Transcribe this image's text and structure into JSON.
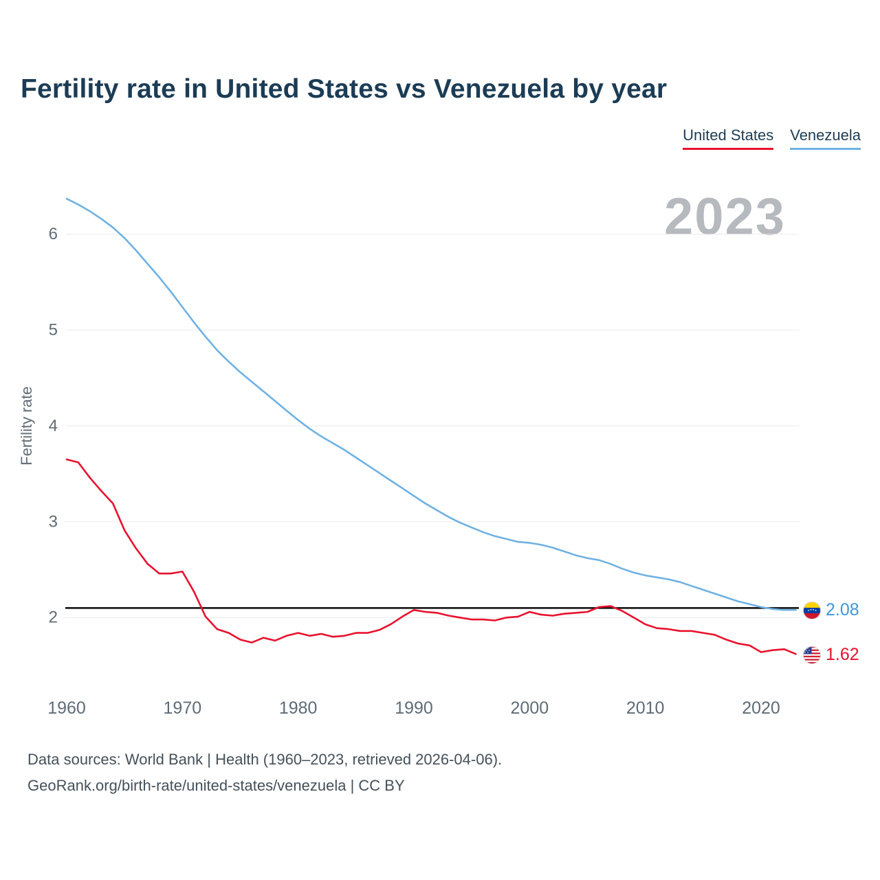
{
  "title": "Fertility rate in United States vs Venezuela by year",
  "legend": [
    {
      "label": "United States",
      "color": "#e8112d"
    },
    {
      "label": "Venezuela",
      "color": "#6fb1e3"
    }
  ],
  "watermark": "2023",
  "end_labels": [
    {
      "series": "Venezuela",
      "value": "2.08",
      "color": "#3d97da",
      "flag": "venezuela-flag-icon"
    },
    {
      "series": "United States",
      "value": "1.62",
      "color": "#e8112d",
      "flag": "us-flag-icon"
    }
  ],
  "footer": {
    "line1": "Data sources: World Bank | Health (1960–2023, retrieved 2026-04-06).",
    "line2": "GeoRank.org/birth-rate/united-states/venezuela | CC BY"
  },
  "chart_data": {
    "type": "line",
    "title": "Fertility rate in United States vs Venezuela by year",
    "xlabel": "",
    "ylabel": "Fertility rate",
    "xlim": [
      1960,
      2023
    ],
    "ylim": [
      1.45,
      6.55
    ],
    "x_ticks": [
      1960,
      1970,
      1980,
      1990,
      2000,
      2010,
      2020
    ],
    "y_ticks": [
      2,
      3,
      4,
      5,
      6
    ],
    "grid": "horizontal",
    "legend_position": "top-right",
    "reference_line": {
      "value": 2.1,
      "color": "#0a0a0a",
      "meaning": "replacement-level fertility"
    },
    "x": [
      1960,
      1961,
      1962,
      1963,
      1964,
      1965,
      1966,
      1967,
      1968,
      1969,
      1970,
      1971,
      1972,
      1973,
      1974,
      1975,
      1976,
      1977,
      1978,
      1979,
      1980,
      1981,
      1982,
      1983,
      1984,
      1985,
      1986,
      1987,
      1988,
      1989,
      1990,
      1991,
      1992,
      1993,
      1994,
      1995,
      1996,
      1997,
      1998,
      1999,
      2000,
      2001,
      2002,
      2003,
      2004,
      2005,
      2006,
      2007,
      2008,
      2009,
      2010,
      2011,
      2012,
      2013,
      2014,
      2015,
      2016,
      2017,
      2018,
      2019,
      2020,
      2021,
      2022,
      2023
    ],
    "series": [
      {
        "name": "Venezuela",
        "color": "#6fb1e3",
        "end_value": 2.08,
        "values": [
          6.37,
          6.31,
          6.24,
          6.16,
          6.07,
          5.96,
          5.83,
          5.69,
          5.55,
          5.4,
          5.24,
          5.08,
          4.93,
          4.79,
          4.67,
          4.56,
          4.46,
          4.36,
          4.26,
          4.16,
          4.06,
          3.97,
          3.89,
          3.82,
          3.75,
          3.67,
          3.59,
          3.51,
          3.43,
          3.35,
          3.27,
          3.19,
          3.12,
          3.05,
          2.99,
          2.94,
          2.89,
          2.85,
          2.82,
          2.79,
          2.78,
          2.76,
          2.73,
          2.69,
          2.65,
          2.62,
          2.6,
          2.56,
          2.51,
          2.47,
          2.44,
          2.42,
          2.4,
          2.37,
          2.33,
          2.29,
          2.25,
          2.21,
          2.17,
          2.14,
          2.11,
          2.09,
          2.08,
          2.08
        ]
      },
      {
        "name": "United States",
        "color": "#e8112d",
        "end_value": 1.62,
        "values": [
          3.65,
          3.62,
          3.46,
          3.32,
          3.19,
          2.91,
          2.72,
          2.56,
          2.46,
          2.46,
          2.48,
          2.27,
          2.01,
          1.88,
          1.84,
          1.77,
          1.74,
          1.79,
          1.76,
          1.81,
          1.84,
          1.81,
          1.83,
          1.8,
          1.81,
          1.84,
          1.84,
          1.87,
          1.93,
          2.01,
          2.08,
          2.06,
          2.05,
          2.02,
          2.0,
          1.98,
          1.98,
          1.97,
          2.0,
          2.01,
          2.06,
          2.03,
          2.02,
          2.04,
          2.05,
          2.06,
          2.11,
          2.12,
          2.07,
          2.0,
          1.93,
          1.89,
          1.88,
          1.86,
          1.86,
          1.84,
          1.82,
          1.77,
          1.73,
          1.71,
          1.64,
          1.66,
          1.67,
          1.62
        ]
      }
    ]
  }
}
